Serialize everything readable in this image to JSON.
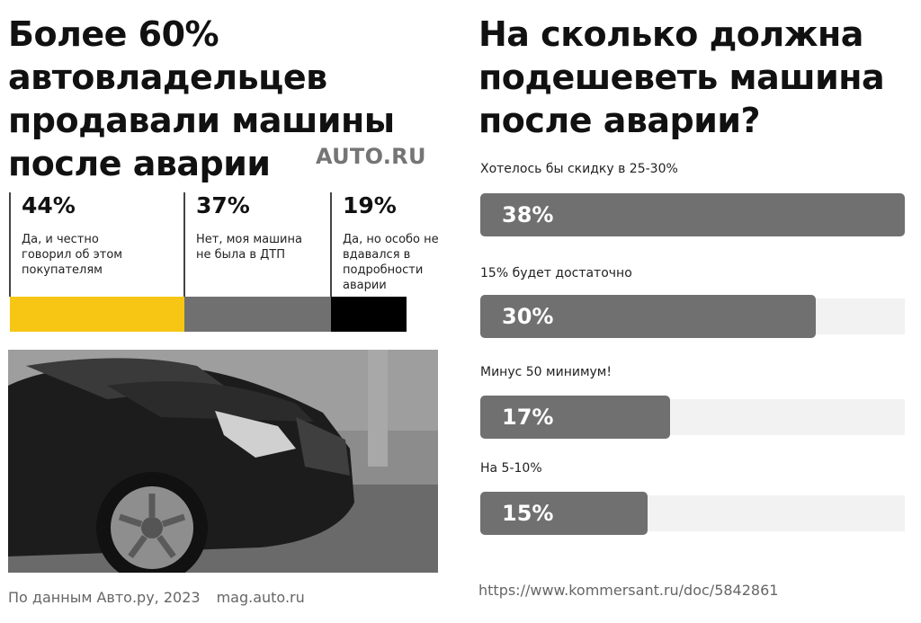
{
  "left": {
    "title_lines": [
      "Более 60%",
      "автовладельцев",
      "продавали машины",
      "после аварии"
    ],
    "brand": "AUTO.RU",
    "footer_source": "По данным Авто.ру, 2023",
    "footer_site": "mag.auto.ru"
  },
  "right": {
    "title_lines": [
      "На сколько должна",
      "подешеветь машина",
      "после аварии?"
    ],
    "source_url": "https://www.kommersant.ru/doc/5842861"
  },
  "colors": {
    "yellow": "#f7c614",
    "gray": "#707070",
    "black": "#000000",
    "track": "#f2f2f2"
  },
  "chart_data": [
    {
      "type": "bar",
      "orientation": "stacked-horizontal",
      "categories": [
        "Да, и честно говорил об этом покупателям",
        "Нет, моя машина не была в ДТП",
        "Да, но особо не вдавался в подробности аварии"
      ],
      "values": [
        44,
        37,
        19
      ],
      "value_labels": [
        "44%",
        "37%",
        "19%"
      ],
      "colors": [
        "#f7c614",
        "#707070",
        "#000000"
      ],
      "title": "Более 60% автовладельцев продавали машины после аварии"
    },
    {
      "type": "bar",
      "orientation": "horizontal",
      "categories": [
        "Хотелось бы скидку в 25-30%",
        "15% будет достаточно",
        "Минус 50 минимум!",
        "На 5-10%"
      ],
      "values": [
        38,
        30,
        17,
        15
      ],
      "value_labels": [
        "38%",
        "30%",
        "17%",
        "15%"
      ],
      "title": "На сколько должна подешеветь машина после аварии?",
      "xlim": [
        0,
        38
      ]
    }
  ]
}
